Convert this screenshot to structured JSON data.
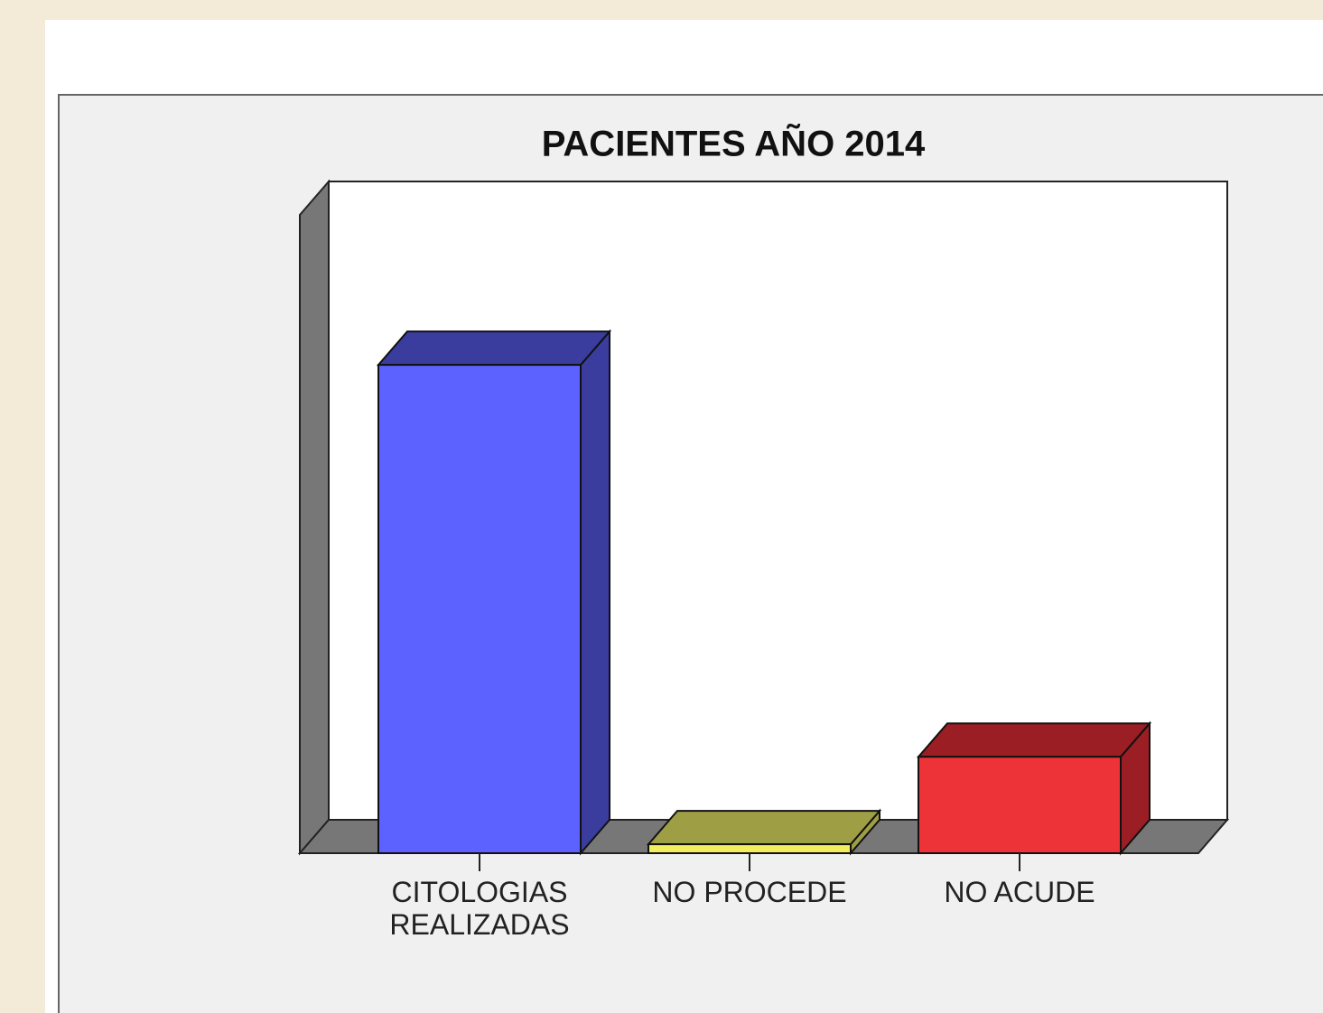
{
  "chart_data": {
    "type": "bar3d",
    "title": "PACIENTES AÑO 2014",
    "categories": [
      "CITOLOGIAS REALIZADAS",
      "NO PROCEDE",
      "NO ACUDE"
    ],
    "values": [
      76.5,
      1.4,
      15.1
    ],
    "colors": [
      {
        "front": "#5c62ff",
        "shade": "#3a3d9e"
      },
      {
        "front": "#f2ee5e",
        "shade": "#9e9e45"
      },
      {
        "front": "#ee3338",
        "shade": "#9a1e24"
      }
    ],
    "ylim": [
      0,
      100
    ]
  }
}
